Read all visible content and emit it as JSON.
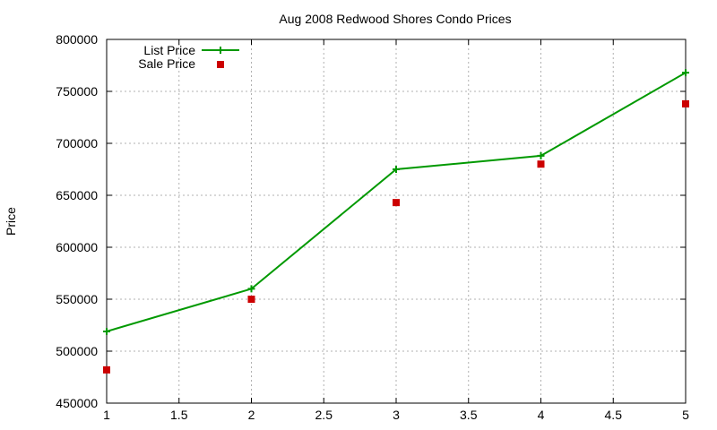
{
  "chart_data": {
    "type": "line",
    "title": "Aug 2008 Redwood Shores Condo Prices",
    "xlabel": "",
    "ylabel": "Price",
    "xlim": [
      1,
      5
    ],
    "ylim": [
      450000,
      800000
    ],
    "x_ticks": [
      "1",
      "1.5",
      "2",
      "2.5",
      "3",
      "3.5",
      "4",
      "4.5",
      "5"
    ],
    "y_ticks": [
      "450000",
      "500000",
      "550000",
      "600000",
      "650000",
      "700000",
      "750000",
      "800000"
    ],
    "grid": true,
    "legend_position": "top-left",
    "series": [
      {
        "name": "List Price",
        "style": "linespoints",
        "marker": "plus",
        "color": "#009900",
        "x": [
          1,
          2,
          3,
          4,
          5
        ],
        "values": [
          519000,
          560000,
          675000,
          688000,
          768000
        ]
      },
      {
        "name": "Sale Price",
        "style": "points",
        "marker": "square",
        "color": "#cc0000",
        "x": [
          1,
          2,
          3,
          4,
          5
        ],
        "values": [
          482000,
          550000,
          643000,
          680000,
          738000
        ]
      }
    ]
  }
}
